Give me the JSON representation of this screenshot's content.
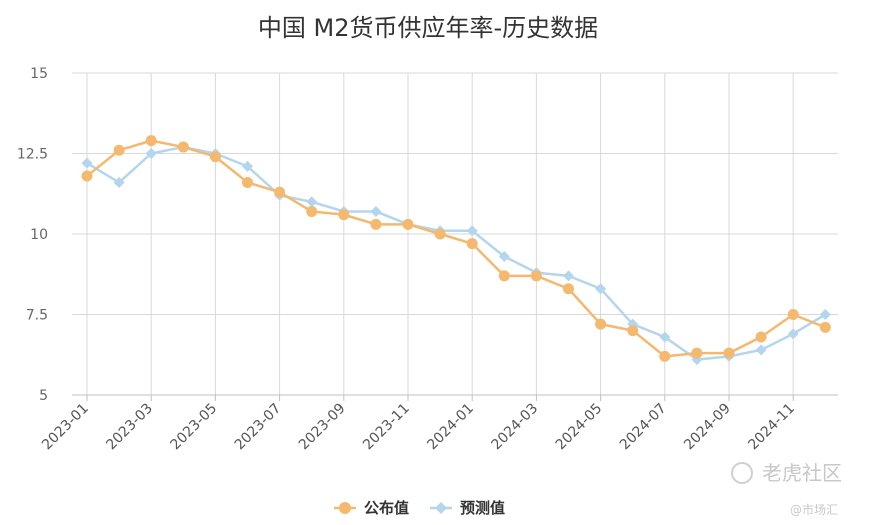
{
  "chart_data": {
    "type": "line",
    "title": "中国 M2货币供应年率-历史数据",
    "xlabel": "",
    "ylabel": "",
    "ylim": [
      5,
      15
    ],
    "y_ticks": [
      "15",
      "12.5",
      "10",
      "7.5",
      "5"
    ],
    "y_tick_values": [
      15,
      12.5,
      10,
      7.5,
      5
    ],
    "x": [
      "2023-01",
      "2023-02",
      "2023-03",
      "2023-04",
      "2023-05",
      "2023-06",
      "2023-07",
      "2023-08",
      "2023-09",
      "2023-10",
      "2023-11",
      "2023-12",
      "2024-01",
      "2024-02",
      "2024-03",
      "2024-04",
      "2024-05",
      "2024-06",
      "2024-07",
      "2024-08",
      "2024-09",
      "2024-10",
      "2024-11",
      "2024-12"
    ],
    "x_tick_labels": [
      "2023-01",
      "2023-03",
      "2023-05",
      "2023-07",
      "2023-09",
      "2023-11",
      "2024-01",
      "2024-03",
      "2024-05",
      "2024-07",
      "2024-09",
      "2024-11"
    ],
    "grid": true,
    "legend_position": "bottom-center",
    "series": [
      {
        "name": "公布值",
        "color": "#f4b86e",
        "marker": "circle",
        "values": [
          11.8,
          12.6,
          12.9,
          12.7,
          12.4,
          11.6,
          11.3,
          10.7,
          10.6,
          10.3,
          10.3,
          10.0,
          9.7,
          8.7,
          8.7,
          8.3,
          7.2,
          7.0,
          6.2,
          6.3,
          6.3,
          6.8,
          7.5,
          7.1
        ]
      },
      {
        "name": "预测值",
        "color": "#b3d6ee",
        "marker": "diamond",
        "values": [
          12.2,
          11.6,
          12.5,
          12.7,
          12.5,
          12.1,
          11.2,
          11.0,
          10.7,
          10.7,
          10.3,
          10.1,
          10.1,
          9.3,
          8.8,
          8.7,
          8.3,
          7.2,
          6.8,
          6.1,
          6.2,
          6.4,
          6.9,
          7.5
        ]
      }
    ]
  },
  "watermark": {
    "text": "老虎社区",
    "sub": "@市场汇"
  },
  "colors": {
    "grid": "#d9d9d9",
    "axis": "#c0c0c0",
    "text": "#333333"
  }
}
